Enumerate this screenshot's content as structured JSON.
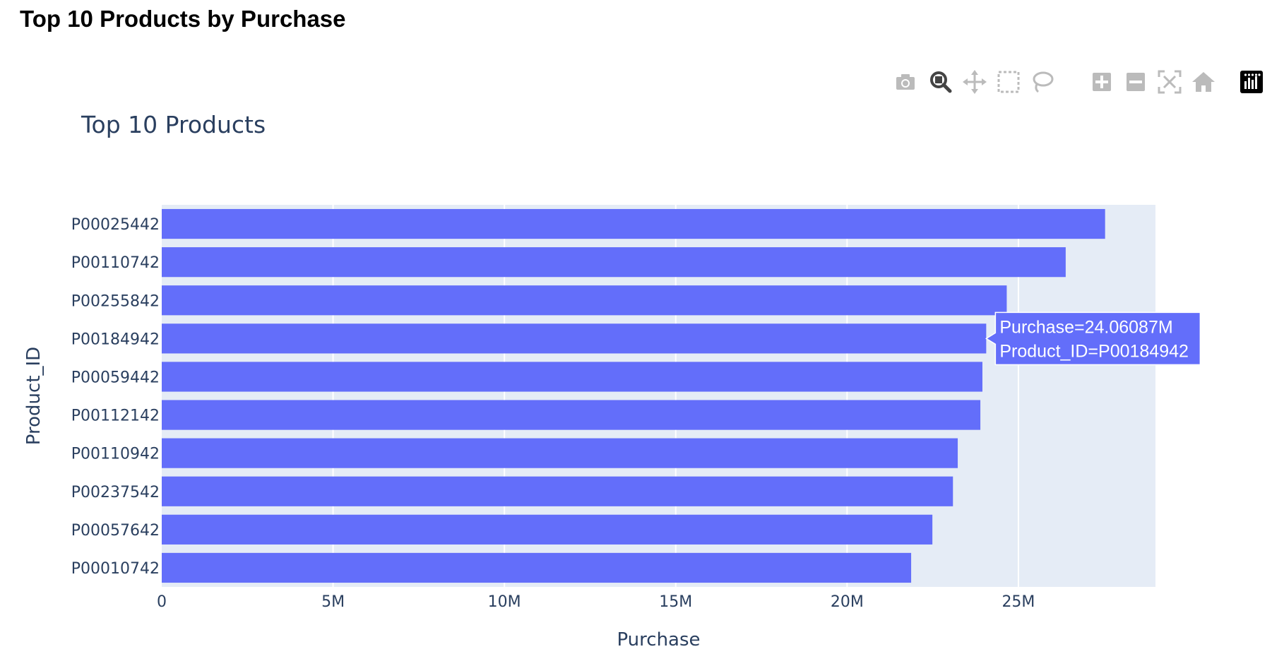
{
  "page": {
    "header": "Top 10 Products by Purchase"
  },
  "modebar": {
    "buttons": [
      {
        "name": "camera-icon",
        "active": false
      },
      {
        "name": "zoom-icon",
        "active": true
      },
      {
        "name": "pan-icon",
        "active": false
      },
      {
        "name": "box-select-icon",
        "active": false
      },
      {
        "name": "lasso-select-icon",
        "active": false
      },
      {
        "name": "zoom-in-icon",
        "active": false
      },
      {
        "name": "zoom-out-icon",
        "active": false
      },
      {
        "name": "autoscale-icon",
        "active": false
      },
      {
        "name": "reset-axes-icon",
        "active": false
      },
      {
        "name": "plotly-logo-icon",
        "active": false
      }
    ]
  },
  "chart_data": {
    "type": "bar",
    "orientation": "horizontal",
    "title": "Top 10 Products",
    "xlabel": "Purchase",
    "ylabel": "Product_ID",
    "categories": [
      "P00025442",
      "P00110742",
      "P00255842",
      "P00184942",
      "P00059442",
      "P00112142",
      "P00110942",
      "P00237542",
      "P00057642",
      "P00010742"
    ],
    "values": [
      27.53,
      26.38,
      24.66,
      24.06087,
      23.95,
      23.89,
      23.23,
      23.09,
      22.49,
      21.87
    ],
    "value_unit": "M",
    "xlim": [
      0,
      29
    ],
    "xticks": [
      0,
      5,
      10,
      15,
      20,
      25
    ],
    "xtick_labels": [
      "0",
      "5M",
      "10M",
      "15M",
      "20M",
      "25M"
    ],
    "grid": true,
    "bar_color": "#636efa",
    "plot_bg": "#e5ecf6",
    "hover": {
      "category": "P00184942",
      "line1": "Purchase=24.06087M",
      "line2": "Product_ID=P00184942"
    }
  }
}
